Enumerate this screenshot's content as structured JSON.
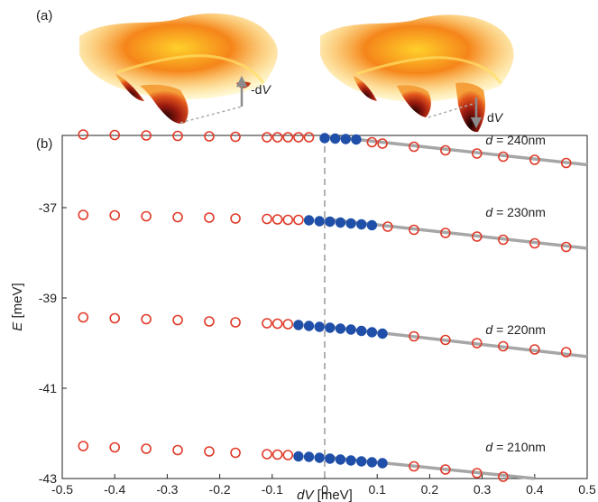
{
  "panel_a": {
    "label": "(a)",
    "annotation_left": {
      "sign": "-d",
      "var": "V"
    },
    "annotation_right": {
      "sign": "d",
      "var": "V"
    },
    "colors": {
      "dark": "#1a0000",
      "red": "#c0281a",
      "orange": "#f07a1a",
      "yellow": "#ffe84a",
      "arrow": "#8c8c8c"
    }
  },
  "chart_data": {
    "type": "scatter",
    "panel_label": "(b)",
    "xlabel": {
      "var": "dV",
      "unit": " [meV]"
    },
    "ylabel": {
      "var": "E",
      "unit": " [meV]"
    },
    "xlim": [
      -0.5,
      0.5
    ],
    "ylim": [
      -43,
      -35.4
    ],
    "xticks": [
      -0.5,
      -0.4,
      -0.3,
      -0.2,
      -0.1,
      0,
      0.1,
      0.2,
      0.3,
      0.4,
      0.5
    ],
    "xtick_labels": [
      "-0.5",
      "-0.4",
      "-0.3",
      "-0.2",
      "-0.1",
      "0",
      "0.1",
      "0.2",
      "0.3",
      "0.4",
      "0.5"
    ],
    "yticks": [
      -37,
      -39,
      -41,
      -43
    ],
    "ytick_labels": [
      "-37",
      "-39",
      "-41",
      "-43"
    ],
    "vline_x": 0,
    "colors": {
      "open_marker": "#e03a28",
      "filled_marker": "#1f4fa8",
      "fit_line": "#a6a6a6",
      "vline": "#999999"
    },
    "series": [
      {
        "name": "d = 240nm",
        "label_prefix": "d",
        "label_value": " = 240nm",
        "label_x": 0.2,
        "label_y": -35.5,
        "open": {
          "x": [
            -0.46,
            -0.4,
            -0.34,
            -0.28,
            -0.22,
            -0.17,
            -0.11,
            -0.09,
            -0.07,
            -0.05,
            -0.03,
            0.09,
            0.11,
            0.17,
            0.23,
            0.29,
            0.34,
            0.4,
            0.46
          ],
          "y": [
            -35.38,
            -35.39,
            -35.4,
            -35.41,
            -35.42,
            -35.43,
            -35.44,
            -35.44,
            -35.44,
            -35.44,
            -35.44,
            -35.55,
            -35.58,
            -35.65,
            -35.73,
            -35.8,
            -35.87,
            -35.94,
            -36.01
          ]
        },
        "filled": {
          "x": [
            0,
            0.02,
            0.04,
            0.06
          ],
          "y": [
            -35.46,
            -35.47,
            -35.48,
            -35.49
          ]
        },
        "fit": {
          "x": [
            0,
            0.5
          ],
          "y": [
            -35.41,
            -36.05
          ]
        }
      },
      {
        "name": "d = 230nm",
        "label_prefix": "d",
        "label_value": " = 230nm",
        "label_x": 0.2,
        "label_y": -37.1,
        "open": {
          "x": [
            -0.46,
            -0.4,
            -0.34,
            -0.28,
            -0.22,
            -0.17,
            -0.11,
            -0.09,
            -0.07,
            -0.05,
            0.12,
            0.17,
            0.23,
            0.29,
            0.34,
            0.4,
            0.46
          ],
          "y": [
            -37.16,
            -37.17,
            -37.19,
            -37.21,
            -37.22,
            -37.24,
            -37.25,
            -37.26,
            -37.27,
            -37.27,
            -37.42,
            -37.49,
            -37.56,
            -37.64,
            -37.71,
            -37.79,
            -37.87
          ]
        },
        "filled": {
          "x": [
            -0.03,
            -0.01,
            0.01,
            0.03,
            0.05,
            0.07,
            0.09
          ],
          "y": [
            -37.28,
            -37.3,
            -37.31,
            -37.33,
            -37.35,
            -37.37,
            -37.39
          ]
        },
        "fit": {
          "x": [
            0,
            0.5
          ],
          "y": [
            -37.25,
            -37.9
          ]
        }
      },
      {
        "name": "d = 220nm",
        "label_prefix": "d",
        "label_value": " = 220nm",
        "label_x": 0.2,
        "label_y": -39.7,
        "open": {
          "x": [
            -0.46,
            -0.4,
            -0.34,
            -0.28,
            -0.22,
            -0.17,
            -0.11,
            -0.09,
            -0.07,
            0.17,
            0.23,
            0.29,
            0.34,
            0.4,
            0.46
          ],
          "y": [
            -39.43,
            -39.45,
            -39.47,
            -39.49,
            -39.52,
            -39.54,
            -39.56,
            -39.57,
            -39.58,
            -39.85,
            -39.93,
            -40.0,
            -40.07,
            -40.14,
            -40.2
          ]
        },
        "filled": {
          "x": [
            -0.05,
            -0.03,
            -0.01,
            0.01,
            0.03,
            0.05,
            0.07,
            0.09,
            0.11
          ],
          "y": [
            -39.6,
            -39.62,
            -39.64,
            -39.66,
            -39.68,
            -39.7,
            -39.73,
            -39.76,
            -39.79
          ]
        },
        "fit": {
          "x": [
            0,
            0.5
          ],
          "y": [
            -39.63,
            -40.3
          ]
        }
      },
      {
        "name": "d = 210nm",
        "label_prefix": "d",
        "label_value": " = 210nm",
        "label_x": 0.2,
        "label_y": -42.3,
        "open": {
          "x": [
            -0.46,
            -0.4,
            -0.34,
            -0.28,
            -0.22,
            -0.17,
            -0.11,
            -0.09,
            -0.07,
            0.17,
            0.23,
            0.29,
            0.34
          ],
          "y": [
            -42.28,
            -42.31,
            -42.34,
            -42.37,
            -42.4,
            -42.43,
            -42.46,
            -42.47,
            -42.48,
            -42.73,
            -42.8,
            -42.88,
            -42.96
          ]
        },
        "filled": {
          "x": [
            -0.05,
            -0.03,
            -0.01,
            0.01,
            0.03,
            0.05,
            0.07,
            0.09,
            0.11
          ],
          "y": [
            -42.51,
            -42.52,
            -42.54,
            -42.56,
            -42.58,
            -42.6,
            -42.62,
            -42.64,
            -42.66
          ]
        },
        "fit": {
          "x": [
            0,
            0.4
          ],
          "y": [
            -42.52,
            -43.0
          ]
        }
      }
    ]
  }
}
